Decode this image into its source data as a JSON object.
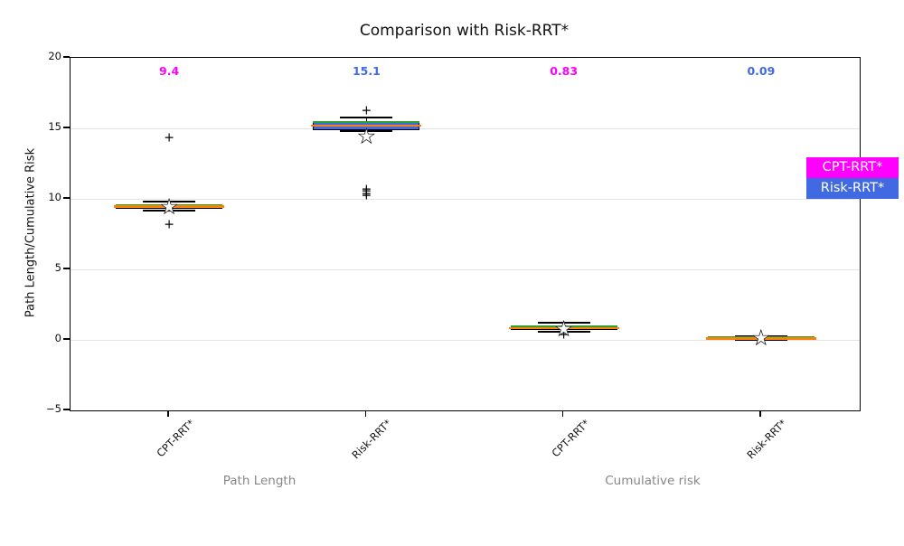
{
  "figure": {
    "title": "Comparison with Risk-RRT*",
    "ylabel": "Path Length/Cumulative Risk"
  },
  "chart_data": {
    "type": "boxplot",
    "title": "Comparison with Risk-RRT*",
    "ylabel": "Path Length/Cumulative Risk",
    "ylim": [
      -5,
      20
    ],
    "yticks": [
      20,
      15,
      10,
      5,
      0,
      -5
    ],
    "ytick_labels": [
      "20",
      "15",
      "10",
      "5",
      "0",
      "−5"
    ],
    "grid": "horizontal",
    "categories": [
      "CPT-RRT*",
      "Risk-RRT*",
      "CPT-RRT*",
      "Risk-RRT*"
    ],
    "group_labels": [
      "Path Length",
      "Cumulative risk"
    ],
    "colors": {
      "cpt": "#ff00ff",
      "risk": "#4169e1",
      "median": "#ff7f0e",
      "mean": "#2ca02c",
      "box_edge": "#000000",
      "grid": "#e4e4e4",
      "group_label": "#878787"
    },
    "legend": {
      "position": "right",
      "entries": [
        {
          "label": "CPT-RRT*",
          "color": "#ff00ff"
        },
        {
          "label": "Risk-RRT*",
          "color": "#4169e1"
        }
      ]
    },
    "annotations": [
      {
        "text": "9.4",
        "color": "#ff00ff"
      },
      {
        "text": "15.1",
        "color": "#4169e1"
      },
      {
        "text": "0.83",
        "color": "#ff00ff"
      },
      {
        "text": "0.09",
        "color": "#4169e1"
      }
    ],
    "boxes": [
      {
        "category": "CPT-RRT*",
        "group": "Path Length",
        "fill": "#ff00ff",
        "q1": 9.3,
        "q3": 9.6,
        "median": 9.45,
        "mean": 9.55,
        "whislo": 9.15,
        "whishi": 9.8,
        "fliers": [
          14.3,
          8.15
        ],
        "star": 9.4
      },
      {
        "category": "Risk-RRT*",
        "group": "Path Length",
        "fill": "#4169e1",
        "q1": 14.9,
        "q3": 15.5,
        "median": 15.2,
        "mean": 15.42,
        "whislo": 14.78,
        "whishi": 15.8,
        "fliers": [
          16.2,
          10.65,
          10.5,
          10.35,
          10.2
        ],
        "star": 14.4
      },
      {
        "category": "CPT-RRT*",
        "group": "Cumulative risk",
        "fill": "#ff00ff",
        "q1": 0.7,
        "q3": 0.95,
        "median": 0.83,
        "mean": 0.93,
        "whislo": 0.55,
        "whishi": 1.25,
        "fliers": [
          0.3
        ],
        "star": 0.75
      },
      {
        "category": "Risk-RRT*",
        "group": "Cumulative risk",
        "fill": "#4169e1",
        "q1": 0.03,
        "q3": 0.2,
        "median": 0.1,
        "mean": 0.17,
        "whislo": -0.02,
        "whishi": 0.28,
        "fliers": [],
        "star": 0.1
      }
    ]
  }
}
